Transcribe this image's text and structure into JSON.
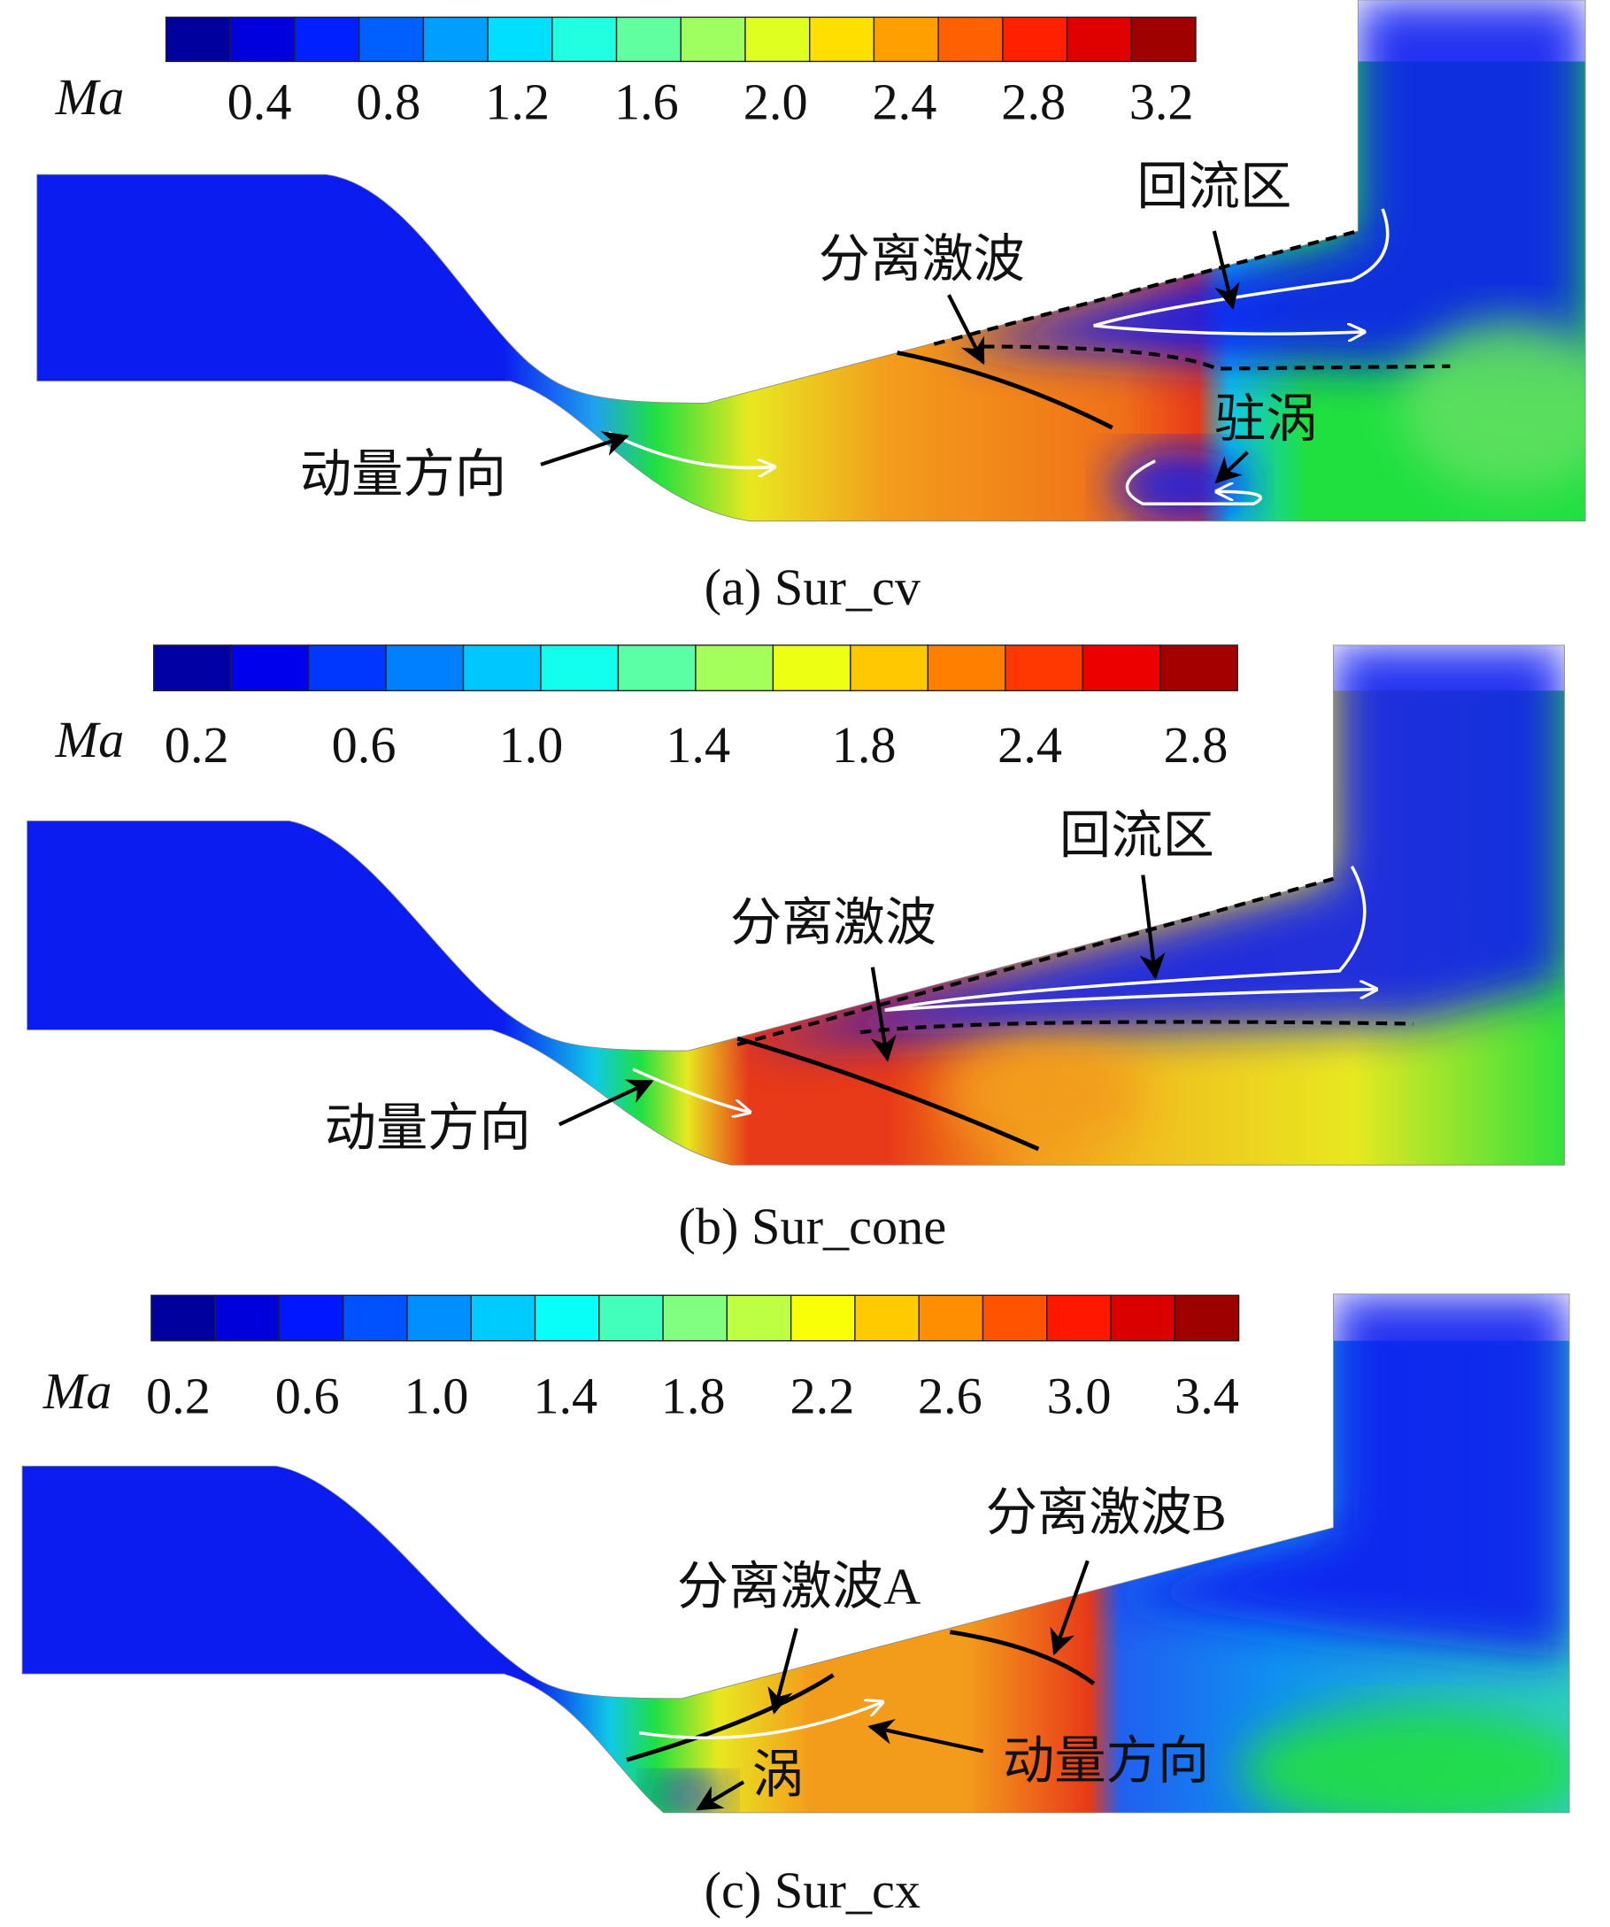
{
  "panels": [
    {
      "colorbar": {
        "label": "Ma",
        "ticks": [
          "0.4",
          "0.8",
          "1.2",
          "1.6",
          "2.0",
          "2.4",
          "2.8",
          "3.2"
        ]
      },
      "annotations": [
        "回流区",
        "分离激波",
        "驻涡",
        "动量方向"
      ],
      "caption": "(a) Sur_cv"
    },
    {
      "colorbar": {
        "label": "Ma",
        "ticks": [
          "0.2",
          "0.6",
          "1.0",
          "1.4",
          "1.8",
          "2.4",
          "2.8"
        ]
      },
      "annotations": [
        "回流区",
        "分离激波",
        "动量方向"
      ],
      "caption": "(b) Sur_cone"
    },
    {
      "colorbar": {
        "label": "Ma",
        "ticks": [
          "0.2",
          "0.6",
          "1.0",
          "1.4",
          "1.8",
          "2.2",
          "2.6",
          "3.0",
          "3.4"
        ]
      },
      "annotations": [
        "分离激波B",
        "分离激波A",
        "涡",
        "动量方向"
      ],
      "caption": "(c) Sur_cx"
    }
  ]
}
